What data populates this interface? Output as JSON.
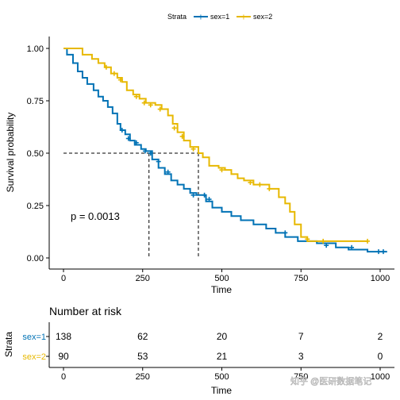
{
  "legend": {
    "title": "Strata",
    "items": [
      {
        "label": "sex=1",
        "color": "#0072B5"
      },
      {
        "label": "sex=2",
        "color": "#E7B800"
      }
    ]
  },
  "annotation": {
    "pvalue": "p = 0.0013"
  },
  "watermark": "知乎 @医研数据笔记",
  "chart_data": {
    "type": "line",
    "subtype": "kaplan-meier survival curve (step)",
    "xlabel": "Time",
    "ylabel": "Survival probability",
    "xlim": [
      0,
      1022
    ],
    "ylim": [
      0,
      1
    ],
    "x_ticks": [
      0,
      250,
      500,
      750,
      1000
    ],
    "x_tick_labels": [
      "0",
      "250",
      "500",
      "750",
      "1000"
    ],
    "y_ticks": [
      0,
      0.25,
      0.5,
      0.75,
      1
    ],
    "y_tick_labels": [
      "0.00",
      "0.25",
      "0.50",
      "0.75",
      "1.00"
    ],
    "grid": false,
    "legend_position": "top",
    "median_lines": {
      "y": 0.5,
      "x": [
        270,
        426
      ]
    },
    "series": [
      {
        "name": "sex=1",
        "color": "#0072B5",
        "points": [
          [
            0,
            1.0
          ],
          [
            11,
            0.97
          ],
          [
            30,
            0.93
          ],
          [
            45,
            0.89
          ],
          [
            60,
            0.86
          ],
          [
            75,
            0.83
          ],
          [
            95,
            0.8
          ],
          [
            110,
            0.77
          ],
          [
            125,
            0.75
          ],
          [
            140,
            0.72
          ],
          [
            155,
            0.69
          ],
          [
            170,
            0.64
          ],
          [
            180,
            0.61
          ],
          [
            195,
            0.59
          ],
          [
            210,
            0.56
          ],
          [
            225,
            0.54
          ],
          [
            245,
            0.52
          ],
          [
            260,
            0.51
          ],
          [
            280,
            0.47
          ],
          [
            300,
            0.43
          ],
          [
            320,
            0.4
          ],
          [
            340,
            0.37
          ],
          [
            360,
            0.35
          ],
          [
            380,
            0.33
          ],
          [
            400,
            0.31
          ],
          [
            420,
            0.3
          ],
          [
            450,
            0.27
          ],
          [
            470,
            0.24
          ],
          [
            500,
            0.22
          ],
          [
            530,
            0.2
          ],
          [
            560,
            0.18
          ],
          [
            600,
            0.16
          ],
          [
            640,
            0.14
          ],
          [
            670,
            0.12
          ],
          [
            700,
            0.1
          ],
          [
            740,
            0.08
          ],
          [
            800,
            0.07
          ],
          [
            860,
            0.05
          ],
          [
            900,
            0.04
          ],
          [
            960,
            0.03
          ],
          [
            1022,
            0.03
          ]
        ],
        "censored": [
          [
            185,
            0.61
          ],
          [
            205,
            0.57
          ],
          [
            230,
            0.55
          ],
          [
            258,
            0.51
          ],
          [
            275,
            0.5
          ],
          [
            300,
            0.46
          ],
          [
            330,
            0.41
          ],
          [
            410,
            0.3
          ],
          [
            445,
            0.3
          ],
          [
            460,
            0.28
          ],
          [
            700,
            0.12
          ],
          [
            830,
            0.06
          ],
          [
            910,
            0.05
          ],
          [
            995,
            0.03
          ],
          [
            1010,
            0.03
          ]
        ]
      },
      {
        "name": "sex=2",
        "color": "#E7B800",
        "points": [
          [
            0,
            1.0
          ],
          [
            60,
            0.97
          ],
          [
            90,
            0.95
          ],
          [
            110,
            0.93
          ],
          [
            130,
            0.91
          ],
          [
            150,
            0.88
          ],
          [
            170,
            0.86
          ],
          [
            185,
            0.84
          ],
          [
            200,
            0.8
          ],
          [
            220,
            0.78
          ],
          [
            240,
            0.76
          ],
          [
            260,
            0.74
          ],
          [
            290,
            0.73
          ],
          [
            310,
            0.71
          ],
          [
            330,
            0.68
          ],
          [
            345,
            0.64
          ],
          [
            360,
            0.6
          ],
          [
            380,
            0.56
          ],
          [
            400,
            0.53
          ],
          [
            426,
            0.5
          ],
          [
            440,
            0.48
          ],
          [
            460,
            0.44
          ],
          [
            490,
            0.43
          ],
          [
            510,
            0.42
          ],
          [
            530,
            0.4
          ],
          [
            550,
            0.38
          ],
          [
            570,
            0.37
          ],
          [
            600,
            0.35
          ],
          [
            650,
            0.33
          ],
          [
            680,
            0.29
          ],
          [
            700,
            0.26
          ],
          [
            715,
            0.22
          ],
          [
            730,
            0.16
          ],
          [
            750,
            0.1
          ],
          [
            770,
            0.08
          ],
          [
            800,
            0.08
          ],
          [
            960,
            0.08
          ]
        ],
        "censored": [
          [
            135,
            0.91
          ],
          [
            160,
            0.88
          ],
          [
            180,
            0.85
          ],
          [
            230,
            0.77
          ],
          [
            255,
            0.74
          ],
          [
            275,
            0.73
          ],
          [
            305,
            0.71
          ],
          [
            350,
            0.62
          ],
          [
            375,
            0.58
          ],
          [
            410,
            0.52
          ],
          [
            500,
            0.42
          ],
          [
            590,
            0.36
          ],
          [
            620,
            0.35
          ],
          [
            650,
            0.33
          ],
          [
            770,
            0.09
          ],
          [
            820,
            0.08
          ],
          [
            960,
            0.08
          ]
        ]
      }
    ]
  },
  "risk_table": {
    "title": "Number at risk",
    "ylabel": "Strata",
    "xlabel": "Time",
    "times": [
      0,
      250,
      500,
      750,
      1000
    ],
    "tick_labels": [
      "0",
      "250",
      "500",
      "750",
      "1000"
    ],
    "rows": [
      {
        "label": "sex=1",
        "color": "#0072B5",
        "counts": [
          138,
          62,
          20,
          7,
          2
        ]
      },
      {
        "label": "sex=2",
        "color": "#E7B800",
        "counts": [
          90,
          53,
          21,
          3,
          0
        ]
      }
    ]
  }
}
